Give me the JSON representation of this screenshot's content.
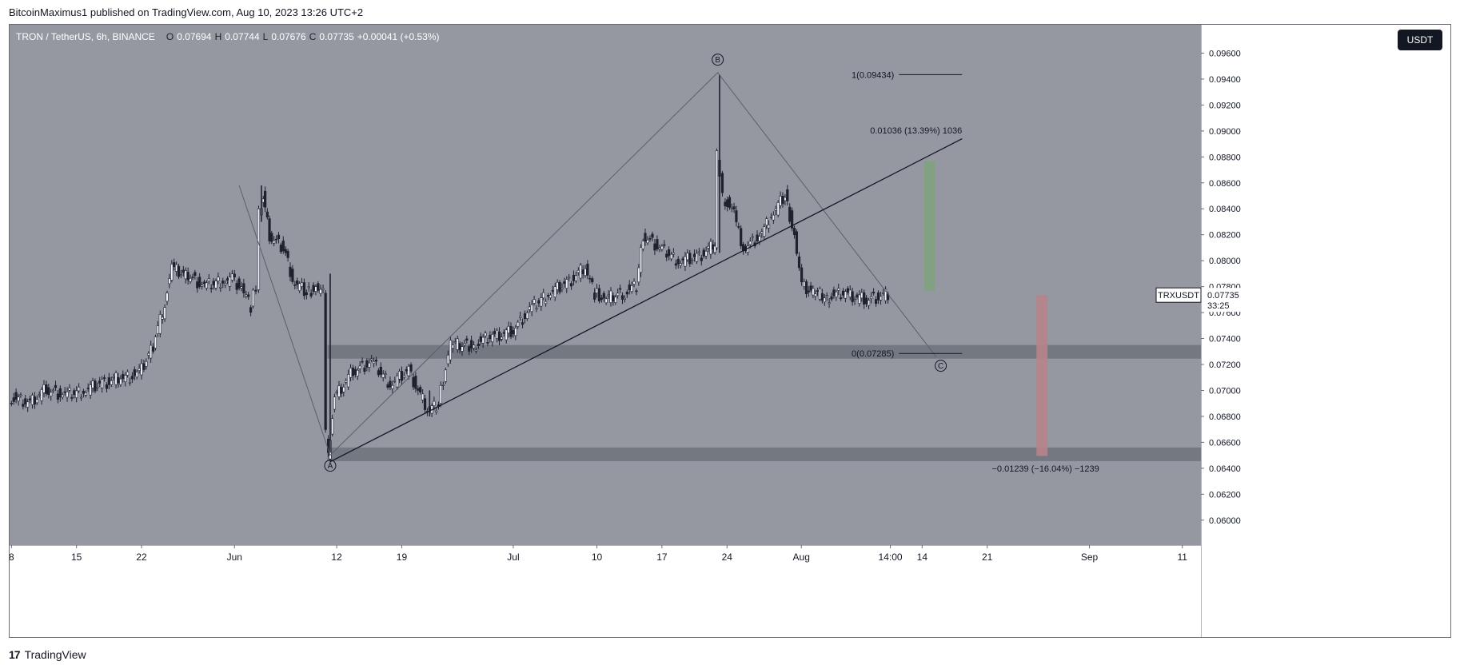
{
  "header": {
    "attribution": "BitcoinMaximus1 published on TradingView.com, Aug 10, 2023 13:26 UTC+2"
  },
  "legend": {
    "symbol": "TRON / TetherUS, 6h, BINANCE",
    "o_label": "O",
    "o_value": "0.07694",
    "h_label": "H",
    "h_value": "0.07744",
    "l_label": "L",
    "l_value": "0.07676",
    "c_label": "C",
    "c_value": "0.07735",
    "change": "+0.00041 (+0.53%)"
  },
  "currency_button": "USDT",
  "price_tag": {
    "symbol": "TRXUSDT",
    "price": "0.07735",
    "countdown": "33:25"
  },
  "footer": {
    "brand": "TradingView",
    "logo_glyph": "17"
  },
  "colors": {
    "background": "#9598a1",
    "candle": "#1e222d",
    "zone": "#6f727b",
    "green_box": "#7fa27e",
    "red_box": "#b8838a",
    "trendline": "#131722",
    "wave_line": "#5c5f68"
  },
  "chart_data": {
    "type": "candlestick",
    "symbol": "TRXUSDT",
    "interval": "6h",
    "ylim": [
      0.059,
      0.0972
    ],
    "y_ticks": [
      "0.09600",
      "0.09400",
      "0.09200",
      "0.09000",
      "0.08800",
      "0.08600",
      "0.08400",
      "0.08200",
      "0.08000",
      "0.07800",
      "0.07600",
      "0.07400",
      "0.07200",
      "0.07000",
      "0.06800",
      "0.06600",
      "0.06400",
      "0.06200",
      "0.06000"
    ],
    "x_ticks": [
      {
        "label": "8",
        "day": -24
      },
      {
        "label": "15",
        "day": -17
      },
      {
        "label": "22",
        "day": -10
      },
      {
        "label": "Jun",
        "day": 0
      },
      {
        "label": "12",
        "day": 11
      },
      {
        "label": "19",
        "day": 18
      },
      {
        "label": "Jul",
        "day": 30
      },
      {
        "label": "10",
        "day": 39
      },
      {
        "label": "17",
        "day": 46
      },
      {
        "label": "24",
        "day": 53
      },
      {
        "label": "Aug",
        "day": 61
      },
      {
        "label": "14:00",
        "day": 70.58
      },
      {
        "label": "14",
        "day": 74
      },
      {
        "label": "21",
        "day": 81
      },
      {
        "label": "Sep",
        "day": 92
      },
      {
        "label": "11",
        "day": 102
      }
    ],
    "x_range_days": [
      -24.2,
      104
    ],
    "close_path": [
      [
        -24,
        0.0695
      ],
      [
        -22,
        0.069
      ],
      [
        -20,
        0.0701
      ],
      [
        -18,
        0.0696
      ],
      [
        -16,
        0.07
      ],
      [
        -14,
        0.0705
      ],
      [
        -12,
        0.071
      ],
      [
        -10,
        0.0712
      ],
      [
        -8.5,
        0.0735
      ],
      [
        -7.5,
        0.076
      ],
      [
        -6.5,
        0.0795
      ],
      [
        -5,
        0.079
      ],
      [
        -3,
        0.078
      ],
      [
        -1,
        0.0785
      ],
      [
        0,
        0.0785
      ],
      [
        1,
        0.078
      ],
      [
        2,
        0.0765
      ],
      [
        2.6,
        0.078
      ],
      [
        2.9,
        0.084
      ],
      [
        3.3,
        0.085
      ],
      [
        4,
        0.082
      ],
      [
        5.5,
        0.081
      ],
      [
        6.5,
        0.0785
      ],
      [
        8,
        0.0775
      ],
      [
        9,
        0.078
      ],
      [
        9.8,
        0.0775
      ],
      [
        10.1,
        0.0665
      ],
      [
        10.3,
        0.0652
      ],
      [
        11,
        0.0695
      ],
      [
        13,
        0.0715
      ],
      [
        15,
        0.0722
      ],
      [
        17,
        0.0705
      ],
      [
        19,
        0.0715
      ],
      [
        21,
        0.0685
      ],
      [
        22.2,
        0.069
      ],
      [
        23.5,
        0.0735
      ],
      [
        26,
        0.0735
      ],
      [
        28,
        0.0742
      ],
      [
        30,
        0.0745
      ],
      [
        32,
        0.0762
      ],
      [
        34,
        0.0775
      ],
      [
        36,
        0.0782
      ],
      [
        38,
        0.0795
      ],
      [
        39,
        0.0775
      ],
      [
        40,
        0.077
      ],
      [
        42,
        0.0775
      ],
      [
        43.5,
        0.078
      ],
      [
        44.2,
        0.082
      ],
      [
        46,
        0.081
      ],
      [
        48,
        0.08
      ],
      [
        50,
        0.0802
      ],
      [
        51.5,
        0.081
      ],
      [
        51.9,
        0.081
      ],
      [
        52.2,
        0.088
      ],
      [
        52.8,
        0.085
      ],
      [
        54,
        0.0835
      ],
      [
        55,
        0.081
      ],
      [
        57,
        0.082
      ],
      [
        58,
        0.0835
      ],
      [
        59.5,
        0.085
      ],
      [
        60.5,
        0.082
      ],
      [
        61.3,
        0.078
      ],
      [
        62.5,
        0.0775
      ],
      [
        64,
        0.0772
      ],
      [
        66,
        0.0775
      ],
      [
        68,
        0.077
      ],
      [
        70.58,
        0.07735
      ]
    ],
    "wicks": [
      {
        "day": 2.9,
        "high": 0.0858,
        "low": 0.083
      },
      {
        "day": 10.3,
        "high": 0.079,
        "low": 0.0652
      },
      {
        "day": 52.2,
        "high": 0.09434,
        "low": 0.0806
      },
      {
        "day": 21,
        "high": 0.07,
        "low": 0.068
      }
    ],
    "horizontal_zones": [
      {
        "low": 0.07245,
        "high": 0.0735
      },
      {
        "low": 0.06455,
        "high": 0.0656
      }
    ],
    "wave_labels": [
      {
        "label": "A",
        "day": 10.3,
        "price": 0.0642
      },
      {
        "label": "B",
        "day": 52.0,
        "price": 0.0955
      },
      {
        "label": "C",
        "day": 76.0,
        "price": 0.0719
      }
    ],
    "wave_path": [
      [
        0.5,
        0.0858
      ],
      [
        10.3,
        0.065
      ],
      [
        52.0,
        0.0945
      ],
      [
        75.5,
        0.0726
      ]
    ],
    "trendline": [
      [
        10.3,
        0.0645
      ],
      [
        78.3,
        0.0894
      ]
    ],
    "fib_levels": [
      {
        "label": "1(0.09434)",
        "price": 0.09434,
        "from_day": 71.5,
        "to_day": 78.3
      },
      {
        "label": "0(0.07285)",
        "price": 0.07285,
        "from_day": 71.5,
        "to_day": 78.3
      }
    ],
    "projections": [
      {
        "label": "0.01036 (13.39%) 1036",
        "day_from": 74.2,
        "day_to": 75.4,
        "price_from": 0.07765,
        "price_to": 0.08765,
        "color": "green"
      },
      {
        "label": "−0.01239 (−16.04%) −1239",
        "day_from": 86.3,
        "day_to": 87.5,
        "price_from": 0.07735,
        "price_to": 0.06495,
        "color": "red"
      }
    ],
    "last_price": 0.07735
  }
}
